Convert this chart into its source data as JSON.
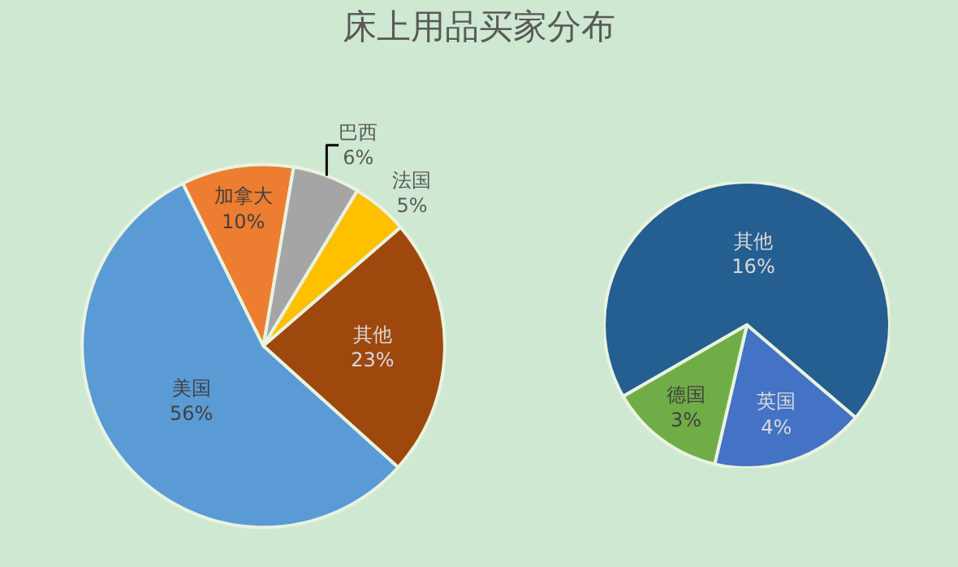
{
  "chart_data": [
    {
      "type": "pie",
      "title": "床上用品买家分布",
      "categories": [
        "美国",
        "加拿大",
        "巴西",
        "法国",
        "其他"
      ],
      "values": [
        56,
        10,
        6,
        5,
        23
      ],
      "value_labels": [
        "56%",
        "10%",
        "6%",
        "5%",
        "23%"
      ],
      "colors": [
        "#5b9bd5",
        "#ed7d31",
        "#a5a5a5",
        "#ffc000",
        "#9e480e"
      ],
      "legend": false
    },
    {
      "type": "pie",
      "categories": [
        "其他",
        "英国",
        "德国"
      ],
      "values": [
        16,
        4,
        3
      ],
      "value_labels": [
        "16%",
        "4%",
        "3%"
      ],
      "colors": [
        "#255e91",
        "#4472c4",
        "#70ad47"
      ],
      "legend": false
    }
  ]
}
